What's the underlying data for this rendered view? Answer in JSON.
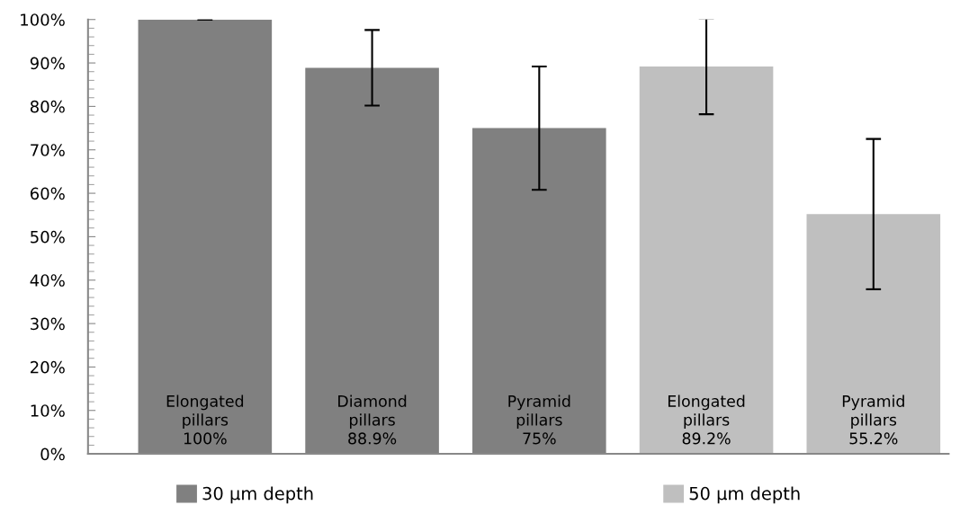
{
  "chart_data": {
    "type": "bar",
    "categories": [
      "Elongated pillars",
      "Diamond pillars",
      "Pyramid pillars",
      "Elongated pillars",
      "Pyramid pillars"
    ],
    "series": [
      {
        "name": "30 µm depth",
        "color": "#808080",
        "values": [
          100,
          88.9,
          75,
          null,
          null
        ],
        "errors": [
          0,
          8.7,
          14.2,
          null,
          null
        ],
        "value_labels": [
          "100%",
          "88.9%",
          "75%",
          null,
          null
        ]
      },
      {
        "name": "50 µm depth",
        "color": "#bfbfbf",
        "values": [
          null,
          null,
          null,
          89.2,
          55.2
        ],
        "errors": [
          null,
          null,
          null,
          11,
          17.3
        ],
        "value_labels": [
          null,
          null,
          null,
          "89.2%",
          "55.2%"
        ]
      }
    ],
    "ylim": [
      0,
      100
    ],
    "yticks": [
      {
        "value": 0,
        "label": "0%"
      },
      {
        "value": 10,
        "label": "10%"
      },
      {
        "value": 20,
        "label": "20%"
      },
      {
        "value": 30,
        "label": "30%"
      },
      {
        "value": 40,
        "label": "40%"
      },
      {
        "value": 50,
        "label": "50%"
      },
      {
        "value": 60,
        "label": "60%"
      },
      {
        "value": 70,
        "label": "70%"
      },
      {
        "value": 80,
        "label": "80%"
      },
      {
        "value": 90,
        "label": "90%"
      },
      {
        "value": 100,
        "label": "100%"
      }
    ],
    "grid": false,
    "legend": "bottom"
  }
}
